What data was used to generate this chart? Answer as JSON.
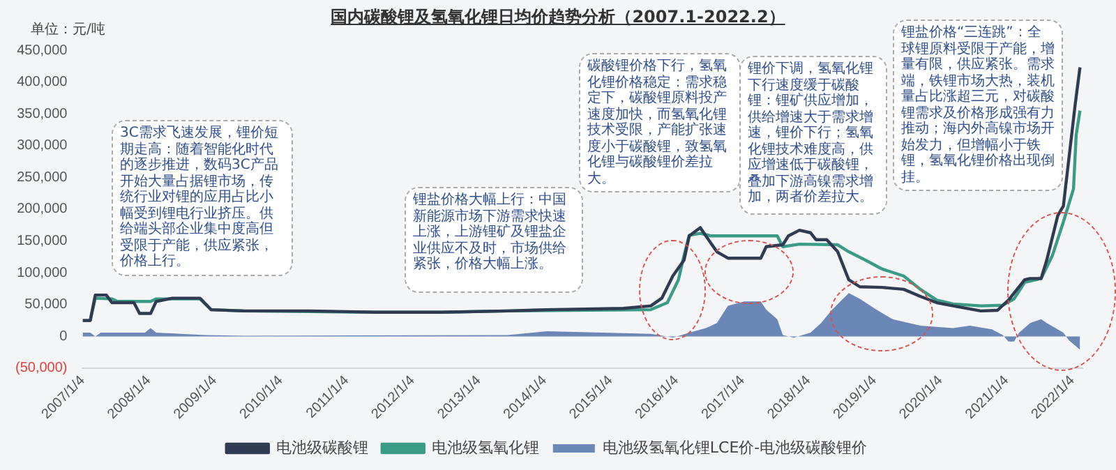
{
  "chart_data": {
    "type": "line",
    "title": "国内碳酸锂及氢氧化锂日均价趋势分析（2007.1-2022.2）",
    "ylabel": "单位：元/吨",
    "xlim": [
      "2007-01-04",
      "2022-03-01"
    ],
    "xticks": [
      {
        "value": "2007-01-04",
        "label": "2007/1/4"
      },
      {
        "value": "2008-01-04",
        "label": "2008/1/4"
      },
      {
        "value": "2009-01-04",
        "label": "2009/1/4"
      },
      {
        "value": "2010-01-04",
        "label": "2010/1/4"
      },
      {
        "value": "2011-01-04",
        "label": "2011/1/4"
      },
      {
        "value": "2012-01-04",
        "label": "2012/1/4"
      },
      {
        "value": "2013-01-04",
        "label": "2013/1/4"
      },
      {
        "value": "2014-01-04",
        "label": "2014/1/4"
      },
      {
        "value": "2015-01-04",
        "label": "2015/1/4"
      },
      {
        "value": "2016-01-04",
        "label": "2016/1/4"
      },
      {
        "value": "2017-01-04",
        "label": "2017/1/4"
      },
      {
        "value": "2018-01-04",
        "label": "2018/1/4"
      },
      {
        "value": "2019-01-04",
        "label": "2019/1/4"
      },
      {
        "value": "2020-01-04",
        "label": "2020/1/4"
      },
      {
        "value": "2021-01-04",
        "label": "2021/1/4"
      },
      {
        "value": "2022-01-04",
        "label": "2022/1/4"
      }
    ],
    "ylim": [
      -50000,
      450000
    ],
    "yticks": [
      {
        "value": -50000,
        "label": "(50,000)"
      },
      {
        "value": 0,
        "label": "0"
      },
      {
        "value": 50000,
        "label": "50,000"
      },
      {
        "value": 100000,
        "label": "100,000"
      },
      {
        "value": 150000,
        "label": "150,000"
      },
      {
        "value": 200000,
        "label": "200,000"
      },
      {
        "value": 250000,
        "label": "250,000"
      },
      {
        "value": 300000,
        "label": "300,000"
      },
      {
        "value": 350000,
        "label": "350,000"
      },
      {
        "value": 400000,
        "label": "400,000"
      },
      {
        "value": 450000,
        "label": "450,000"
      }
    ],
    "grid": false,
    "legend": "bottom",
    "marker": "none",
    "series": [
      {
        "name": "电池级氢氧化锂LCE价-电池级碳酸锂价",
        "type": "area",
        "color": "#6b87b8",
        "x": [
          "2007-01-04",
          "2007-02",
          "2007-03",
          "2007-04",
          "2007-12",
          "2008-01",
          "2008-02",
          "2008-11",
          "2009-06",
          "2013-06",
          "2014-01",
          "2015-08",
          "2015-11",
          "2015-12",
          "2016-03",
          "2016-06",
          "2016-08",
          "2016-10",
          "2017-01",
          "2017-04",
          "2017-05",
          "2017-07",
          "2017-08",
          "2017-10",
          "2018-01",
          "2018-03",
          "2018-05",
          "2018-08",
          "2018-10",
          "2019-01",
          "2019-04",
          "2019-09",
          "2020-03",
          "2020-06",
          "2020-10",
          "2020-12",
          "2021-01",
          "2021-02",
          "2021-03",
          "2021-05",
          "2021-07",
          "2021-08",
          "2021-11",
          "2021-12",
          "2022-02"
        ],
        "values": [
          6000,
          6000,
          0,
          6000,
          6000,
          13000,
          6000,
          2000,
          1000,
          2000,
          8000,
          4000,
          0,
          -2000,
          6000,
          13000,
          21000,
          48000,
          55000,
          55000,
          42000,
          27000,
          2000,
          -2000,
          6000,
          21000,
          42000,
          68000,
          59000,
          42000,
          27000,
          17000,
          13000,
          17000,
          11000,
          2000,
          -8000,
          -8000,
          6000,
          21000,
          27000,
          21000,
          6000,
          -6000,
          -21000
        ]
      },
      {
        "name": "电池级碳酸锂",
        "type": "line",
        "color": "#2f3b52",
        "x": [
          "2007-01-04",
          "2007-02",
          "2007-03",
          "2007-05",
          "2007-06",
          "2007-10",
          "2007-11",
          "2008-01",
          "2008-02",
          "2008-05",
          "2008-10",
          "2008-12",
          "2009-06",
          "2010-06",
          "2011-06",
          "2012-06",
          "2013-06",
          "2014-01",
          "2015-03",
          "2015-08",
          "2015-10",
          "2015-12",
          "2016-02",
          "2016-03",
          "2016-05",
          "2016-06",
          "2016-08",
          "2016-10",
          "2017-04",
          "2017-05",
          "2017-08",
          "2017-09",
          "2017-11",
          "2018-01",
          "2018-02",
          "2018-04",
          "2018-06",
          "2018-08",
          "2018-10",
          "2019-02",
          "2019-06",
          "2019-09",
          "2019-12",
          "2020-03",
          "2020-08",
          "2020-11",
          "2021-01",
          "2021-04",
          "2021-05",
          "2021-07",
          "2021-08",
          "2021-10",
          "2021-11",
          "2022-01-20",
          "2022-02-15"
        ],
        "values": [
          25000,
          25000,
          65000,
          65000,
          53000,
          53000,
          36000,
          36000,
          55000,
          60000,
          60000,
          42000,
          40000,
          40000,
          38000,
          38000,
          40000,
          42000,
          44000,
          48000,
          60000,
          95000,
          120000,
          158000,
          171000,
          158000,
          133000,
          123000,
          123000,
          141000,
          144000,
          158000,
          167000,
          163000,
          152000,
          152000,
          133000,
          89000,
          78000,
          77000,
          74000,
          63000,
          53000,
          48000,
          40000,
          41000,
          57000,
          89000,
          91000,
          91000,
          120000,
          190000,
          205000,
          366000,
          423000
        ]
      },
      {
        "name": "电池级氢氧化锂",
        "type": "line",
        "color": "#3a9b87",
        "x": [
          "2007-01-04",
          "2007-02",
          "2007-03",
          "2007-06",
          "2007-07",
          "2008-01",
          "2008-02",
          "2008-10",
          "2008-12",
          "2009-06",
          "2011-06",
          "2012-06",
          "2013-06",
          "2015-08",
          "2015-11",
          "2016-01",
          "2016-02",
          "2016-03",
          "2016-05",
          "2016-07",
          "2017-07",
          "2017-08",
          "2017-11",
          "2018-06",
          "2018-08",
          "2018-11",
          "2019-02",
          "2019-06",
          "2019-09",
          "2019-12",
          "2020-03",
          "2020-08",
          "2020-12",
          "2021-02",
          "2021-04",
          "2021-07",
          "2021-09",
          "2021-11",
          "2022-01-10",
          "2022-01-25",
          "2022-02-15"
        ],
        "values": [
          25000,
          25000,
          60000,
          59000,
          55000,
          55000,
          59000,
          59000,
          42000,
          40000,
          38000,
          38000,
          40000,
          42000,
          53000,
          89000,
          127000,
          159000,
          162000,
          158000,
          158000,
          141000,
          145000,
          144000,
          133000,
          120000,
          106000,
          95000,
          74000,
          57000,
          51000,
          48000,
          49000,
          59000,
          85000,
          91000,
          127000,
          180000,
          232000,
          317000,
          355000
        ]
      }
    ],
    "annotations": [
      "3C需求飞速发展，锂价短期走高：随着智能化时代的逐步推进，数码3C产品开始大量占据锂市场，传统行业对锂的应用占比小幅受到锂电行业挤压。供给端头部企业集中度高但受限于产能，供应紧张，价格上行。",
      "锂盐价格大幅上行：中国新能源市场下游需求快速上涨，上游锂矿及锂盐企业供应不及时，市场供给紧张，价格大幅上涨。",
      "碳酸锂价格下行，氢氧化锂价格稳定：需求稳定下，碳酸锂原料投产速度加快，而氢氧化锂技术受限，产能扩张速度小于碳酸锂，致氢氧化锂与碳酸锂价差拉大。",
      "锂价下调，氢氧化锂下行速度缓于碳酸锂：锂矿供应增加，供给增速大于需求增速，锂价下行；氢氧化锂技术难度高，供应增速低于碳酸锂，叠加下游高镍需求增加，两者价差拉大。",
      "锂盐价格“三连跳”：全球锂原料受限于产能，增量有限，供应紧张。需求端，铁锂市场大热，装机量占比涨超三元，对碳酸锂需求及价格形成强有力推动；海内外高镍市场开始发力，但增幅小于铁锂，氢氧化锂价格出现倒挂。"
    ]
  }
}
